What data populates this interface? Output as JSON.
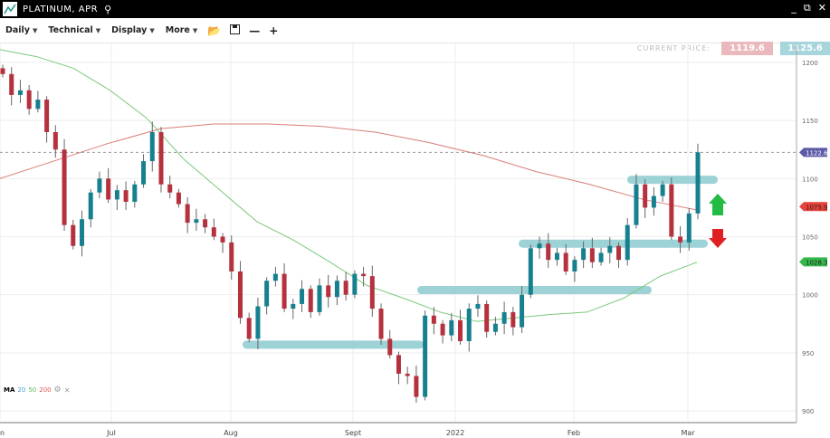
{
  "header": {
    "title": "PLATINUM, APR",
    "icon": "chart-line-icon",
    "search_icon": "search-icon",
    "controls": [
      "minimize-icon",
      "popout-icon",
      "close-icon"
    ]
  },
  "toolbar": {
    "menus": [
      "Daily",
      "Technical",
      "Display",
      "More"
    ],
    "icons": [
      "folder-open-icon",
      "save-icon",
      "zoom-out-icon",
      "zoom-in-icon"
    ]
  },
  "price": {
    "label": "CURRENT PRICE:",
    "bid": "1119.6",
    "ask": "1125.6"
  },
  "legend": {
    "label": "MA",
    "periods": [
      "20",
      "50",
      "200"
    ],
    "colors": {
      "20": "#3aa0c8",
      "50": "#5cb85c",
      "200": "#d9534f"
    }
  },
  "colors": {
    "up": "#17808f",
    "down": "#b5313e",
    "ma50": "#7cc97c",
    "ma200": "#d97e78",
    "band": "#8ccad0",
    "last": "#5b5aa6",
    "tag200": "#e8413a",
    "tag50": "#35b84a"
  },
  "chart_data": {
    "type": "candlestick",
    "ylim": [
      890,
      1215
    ],
    "yticks": [
      900,
      950,
      1000,
      1050,
      1100,
      1150,
      1200
    ],
    "xticks": [
      "n",
      "Jul",
      "Aug",
      "Sept",
      "2022",
      "Feb",
      "Mar"
    ],
    "closes": [
      1190,
      1172,
      1176,
      1160,
      1168,
      1140,
      1125,
      1060,
      1042,
      1065,
      1088,
      1100,
      1082,
      1090,
      1080,
      1095,
      1115,
      1140,
      1095,
      1088,
      1078,
      1062,
      1065,
      1058,
      1050,
      1045,
      1020,
      980,
      962,
      990,
      1012,
      1018,
      988,
      992,
      1005,
      985,
      1008,
      998,
      1012,
      1000,
      1018,
      1016,
      988,
      962,
      948,
      932,
      930,
      912,
      982,
      975,
      965,
      978,
      960,
      988,
      992,
      968,
      975,
      985,
      972,
      1000,
      1040,
      1044,
      1030,
      1036,
      1020,
      1030,
      1040,
      1028,
      1036,
      1042,
      1030,
      1060,
      1095,
      1075,
      1085,
      1095,
      1050,
      1045,
      1070,
      1122.6
    ],
    "ma50": [
      1211,
      1205,
      1195,
      1176,
      1152,
      1117,
      1090,
      1063,
      1047,
      1028,
      1008,
      997,
      985,
      977,
      980,
      983,
      985,
      997,
      1016,
      1028
    ],
    "ma200": [
      1100,
      1115,
      1130,
      1143,
      1147,
      1147,
      1145,
      1140,
      1131,
      1120,
      1106,
      1095,
      1082,
      1073
    ],
    "last_price": "1122.6",
    "ma200_value": "1075.9",
    "ma50_value": "1028.3",
    "support_resistance_levels": [
      957,
      1004,
      1044,
      1099
    ]
  }
}
